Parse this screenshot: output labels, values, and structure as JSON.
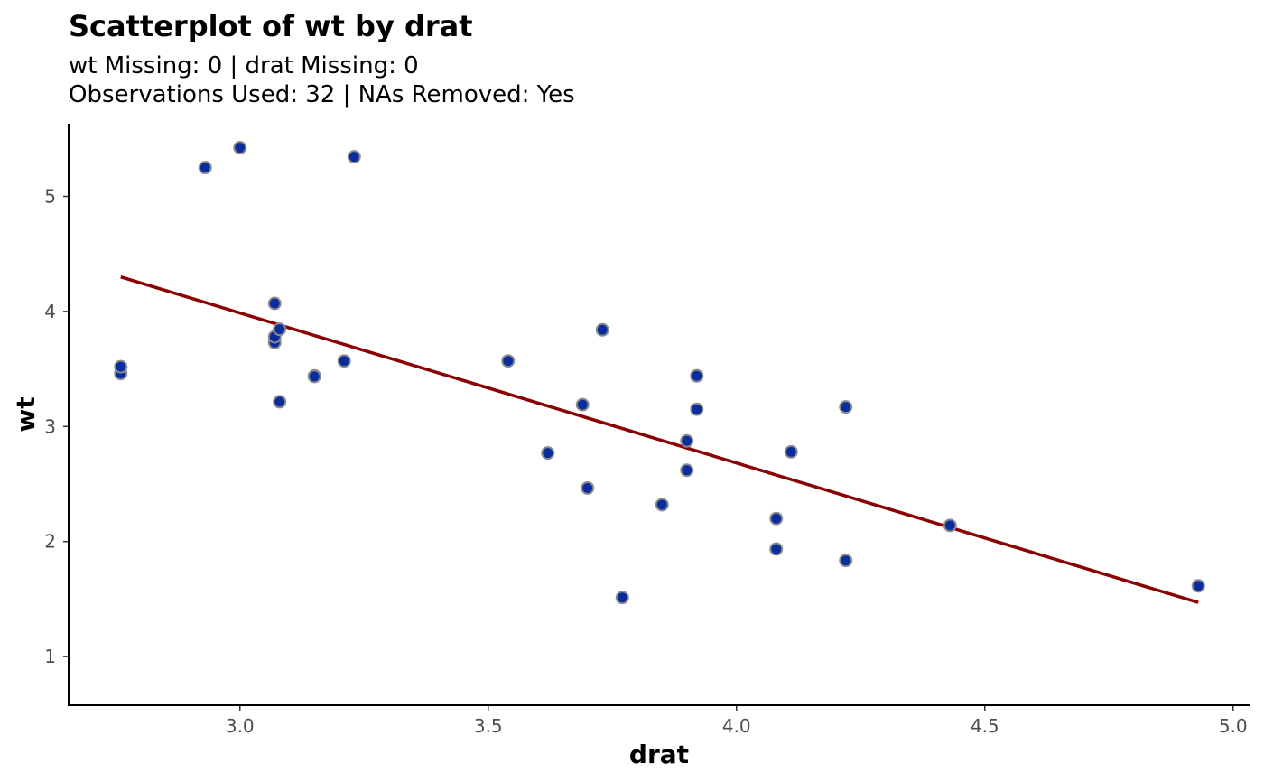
{
  "chart_data": {
    "type": "scatter",
    "title": "Scatterplot of wt by drat",
    "subtitle_lines": [
      "wt Missing: 0 | drat Missing: 0",
      "Observations Used: 32 | NAs Removed: Yes"
    ],
    "xlabel": "drat",
    "ylabel": "wt",
    "xlim": [
      2.655,
      5.035
    ],
    "ylim": [
      0.577,
      5.632
    ],
    "x_ticks": [
      3.0,
      3.5,
      4.0,
      4.5,
      5.0
    ],
    "x_tick_labels": [
      "3.0",
      "3.5",
      "4.0",
      "4.5",
      "5.0"
    ],
    "y_ticks": [
      1,
      2,
      3,
      4,
      5
    ],
    "y_tick_labels": [
      "1",
      "2",
      "3",
      "4",
      "5"
    ],
    "grid": false,
    "points": {
      "x": [
        3.9,
        3.9,
        3.85,
        3.08,
        3.15,
        2.76,
        3.21,
        3.69,
        3.92,
        3.92,
        3.92,
        3.07,
        3.07,
        3.07,
        2.93,
        3.0,
        3.23,
        4.08,
        4.93,
        4.22,
        3.7,
        2.76,
        3.15,
        3.73,
        3.08,
        4.08,
        4.43,
        3.77,
        4.22,
        3.62,
        3.54,
        4.11
      ],
      "y": [
        2.62,
        2.875,
        2.32,
        3.215,
        3.44,
        3.46,
        3.57,
        3.19,
        3.15,
        3.44,
        3.44,
        4.07,
        3.73,
        3.78,
        5.25,
        5.424,
        5.345,
        2.2,
        1.615,
        1.835,
        2.465,
        3.52,
        3.435,
        3.84,
        3.845,
        1.935,
        2.14,
        1.513,
        3.17,
        2.77,
        3.57,
        2.78
      ]
    },
    "fit_line": {
      "x": [
        2.76,
        4.93
      ],
      "y": [
        4.3,
        1.47
      ]
    },
    "colors": {
      "point_fill": "#0a2d9e",
      "point_stroke": "#8c8c8c",
      "fit_line": "#8b0000",
      "axis": "#000000"
    }
  }
}
